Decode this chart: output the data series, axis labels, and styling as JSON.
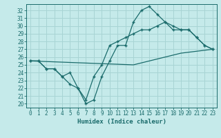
{
  "xlabel": "Humidex (Indice chaleur)",
  "bg_color": "#c5eaea",
  "grid_color": "#a8d4d4",
  "line_color": "#1a6b6b",
  "xlim": [
    -0.5,
    23.5
  ],
  "ylim": [
    19.5,
    32.8
  ],
  "yticks": [
    20,
    21,
    22,
    23,
    24,
    25,
    26,
    27,
    28,
    29,
    30,
    31,
    32
  ],
  "xticks": [
    0,
    1,
    2,
    3,
    4,
    5,
    6,
    7,
    8,
    9,
    10,
    11,
    12,
    13,
    14,
    15,
    16,
    17,
    18,
    19,
    20,
    21,
    22,
    23
  ],
  "line1_x": [
    0,
    1,
    2,
    3,
    4,
    5,
    6,
    7,
    8,
    9,
    10,
    11,
    12,
    13,
    14,
    15,
    16,
    17,
    18,
    19,
    20,
    21,
    22,
    23
  ],
  "line1_y": [
    25.5,
    25.5,
    24.5,
    24.5,
    23.5,
    22.5,
    22.0,
    20.0,
    20.5,
    23.5,
    25.5,
    27.5,
    27.5,
    30.5,
    32.0,
    32.5,
    31.5,
    30.5,
    30.0,
    29.5,
    29.5,
    28.5,
    27.5,
    27.0
  ],
  "line2_x": [
    0,
    1,
    2,
    3,
    4,
    5,
    6,
    7,
    8,
    9,
    10,
    11,
    12,
    13,
    14,
    15,
    16,
    17,
    18,
    19,
    20,
    21,
    22,
    23
  ],
  "line2_y": [
    25.5,
    25.5,
    24.5,
    24.5,
    23.5,
    24.0,
    22.0,
    20.5,
    23.5,
    25.0,
    27.5,
    28.0,
    28.5,
    29.0,
    29.5,
    29.5,
    30.0,
    30.5,
    29.5,
    29.5,
    29.5,
    28.5,
    27.5,
    27.0
  ],
  "line3_x": [
    0,
    13,
    19,
    23
  ],
  "line3_y": [
    25.5,
    25.0,
    26.5,
    27.0
  ]
}
